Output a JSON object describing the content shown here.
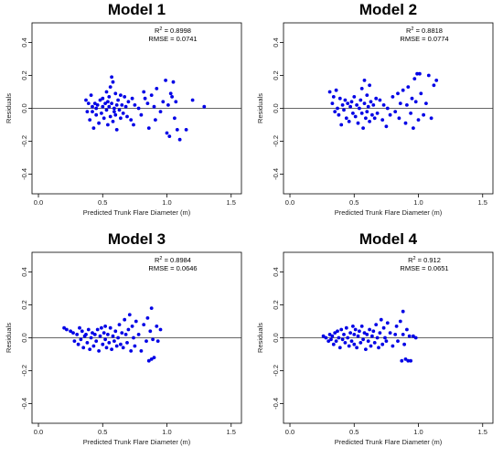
{
  "chart_data": [
    {
      "type": "scatter",
      "title": "Model 1",
      "r2_prefix": "R",
      "r2_sup": "2",
      "r2_value": " = 0.8998",
      "rmse_text": "RMSE = 0.0741",
      "xlabel": "Predicted Trunk Flare Diameter (m)",
      "ylabel": "Residuals",
      "xlim": [
        -0.05,
        1.58
      ],
      "ylim": [
        -0.52,
        0.52
      ],
      "xticks": [
        "0.0",
        "0.5",
        "1.0",
        "1.5"
      ],
      "yticks": [
        "-0.4",
        "-0.2",
        "0.0",
        "0.2",
        "0.4"
      ],
      "reference_line_y": 0.0,
      "color": "#0000e6",
      "points": [
        [
          0.37,
          0.05
        ],
        [
          0.38,
          -0.02
        ],
        [
          0.39,
          0.03
        ],
        [
          0.4,
          -0.07
        ],
        [
          0.41,
          0.08
        ],
        [
          0.42,
          -0.02
        ],
        [
          0.42,
          0.01
        ],
        [
          0.43,
          -0.12
        ],
        [
          0.44,
          0.03
        ],
        [
          0.45,
          0.0
        ],
        [
          0.45,
          -0.04
        ],
        [
          0.46,
          0.02
        ],
        [
          0.47,
          -0.09
        ],
        [
          0.48,
          0.05
        ],
        [
          0.49,
          -0.03
        ],
        [
          0.5,
          0.01
        ],
        [
          0.5,
          0.06
        ],
        [
          0.51,
          -0.06
        ],
        [
          0.52,
          0.03
        ],
        [
          0.53,
          -0.01
        ],
        [
          0.53,
          0.1
        ],
        [
          0.54,
          0.04
        ],
        [
          0.54,
          -0.1
        ],
        [
          0.55,
          0.07
        ],
        [
          0.55,
          0.01
        ],
        [
          0.56,
          -0.05
        ],
        [
          0.56,
          0.13
        ],
        [
          0.57,
          0.19
        ],
        [
          0.57,
          0.03
        ],
        [
          0.58,
          -0.08
        ],
        [
          0.58,
          0.16
        ],
        [
          0.59,
          0.0
        ],
        [
          0.59,
          -0.02
        ],
        [
          0.6,
          0.09
        ],
        [
          0.6,
          -0.04
        ],
        [
          0.61,
          0.02
        ],
        [
          0.61,
          -0.13
        ],
        [
          0.62,
          0.05
        ],
        [
          0.63,
          -0.01
        ],
        [
          0.64,
          0.08
        ],
        [
          0.64,
          -0.06
        ],
        [
          0.65,
          0.02
        ],
        [
          0.66,
          -0.03
        ],
        [
          0.67,
          0.07
        ],
        [
          0.68,
          0.01
        ],
        [
          0.69,
          -0.05
        ],
        [
          0.7,
          0.04
        ],
        [
          0.72,
          -0.07
        ],
        [
          0.73,
          0.06
        ],
        [
          0.74,
          -0.1
        ],
        [
          0.75,
          0.02
        ],
        [
          0.78,
          0.0
        ],
        [
          0.8,
          -0.04
        ],
        [
          0.82,
          0.1
        ],
        [
          0.83,
          0.06
        ],
        [
          0.85,
          0.03
        ],
        [
          0.86,
          -0.12
        ],
        [
          0.88,
          0.08
        ],
        [
          0.9,
          0.01
        ],
        [
          0.91,
          -0.07
        ],
        [
          0.92,
          0.12
        ],
        [
          0.95,
          -0.02
        ],
        [
          0.97,
          0.04
        ],
        [
          0.99,
          0.17
        ],
        [
          1.0,
          -0.15
        ],
        [
          1.01,
          0.02
        ],
        [
          1.02,
          -0.17
        ],
        [
          1.03,
          0.09
        ],
        [
          1.04,
          0.07
        ],
        [
          1.05,
          0.16
        ],
        [
          1.06,
          -0.06
        ],
        [
          1.07,
          0.04
        ],
        [
          1.08,
          -0.13
        ],
        [
          1.1,
          -0.19
        ],
        [
          1.15,
          -0.13
        ],
        [
          1.2,
          0.05
        ],
        [
          1.29,
          0.01
        ]
      ]
    },
    {
      "type": "scatter",
      "title": "Model 2",
      "r2_prefix": "R",
      "r2_sup": "2",
      "r2_value": " = 0.8818",
      "rmse_text": "RMSE = 0.0774",
      "xlabel": "Predicted Trunk Flare Diameter (m)",
      "ylabel": "Residuals",
      "xlim": [
        -0.05,
        1.58
      ],
      "ylim": [
        -0.52,
        0.52
      ],
      "xticks": [
        "0.0",
        "0.5",
        "1.0",
        "1.5"
      ],
      "yticks": [
        "-0.4",
        "-0.2",
        "0.0",
        "0.2",
        "0.4"
      ],
      "reference_line_y": 0.0,
      "color": "#0000e6",
      "points": [
        [
          0.31,
          0.1
        ],
        [
          0.33,
          0.03
        ],
        [
          0.34,
          0.07
        ],
        [
          0.35,
          -0.02
        ],
        [
          0.36,
          0.11
        ],
        [
          0.37,
          0.0
        ],
        [
          0.38,
          -0.04
        ],
        [
          0.39,
          0.06
        ],
        [
          0.4,
          -0.1
        ],
        [
          0.41,
          0.02
        ],
        [
          0.42,
          -0.01
        ],
        [
          0.43,
          0.05
        ],
        [
          0.44,
          -0.06
        ],
        [
          0.45,
          0.03
        ],
        [
          0.46,
          -0.08
        ],
        [
          0.47,
          0.01
        ],
        [
          0.48,
          0.04
        ],
        [
          0.49,
          -0.03
        ],
        [
          0.5,
          0.07
        ],
        [
          0.51,
          -0.05
        ],
        [
          0.52,
          0.02
        ],
        [
          0.53,
          -0.09
        ],
        [
          0.54,
          0.0
        ],
        [
          0.55,
          0.05
        ],
        [
          0.56,
          -0.03
        ],
        [
          0.56,
          0.12
        ],
        [
          0.57,
          -0.12
        ],
        [
          0.58,
          0.17
        ],
        [
          0.58,
          0.03
        ],
        [
          0.59,
          -0.06
        ],
        [
          0.6,
          0.08
        ],
        [
          0.6,
          -0.02
        ],
        [
          0.61,
          0.01
        ],
        [
          0.62,
          -0.08
        ],
        [
          0.62,
          0.14
        ],
        [
          0.63,
          0.04
        ],
        [
          0.64,
          -0.04
        ],
        [
          0.65,
          0.02
        ],
        [
          0.66,
          -0.06
        ],
        [
          0.67,
          0.06
        ],
        [
          0.68,
          -0.03
        ],
        [
          0.7,
          0.05
        ],
        [
          0.72,
          -0.07
        ],
        [
          0.73,
          0.02
        ],
        [
          0.75,
          -0.11
        ],
        [
          0.76,
          0.0
        ],
        [
          0.78,
          -0.04
        ],
        [
          0.8,
          0.07
        ],
        [
          0.82,
          -0.02
        ],
        [
          0.84,
          0.09
        ],
        [
          0.85,
          -0.06
        ],
        [
          0.86,
          0.03
        ],
        [
          0.88,
          0.11
        ],
        [
          0.9,
          -0.09
        ],
        [
          0.91,
          0.02
        ],
        [
          0.92,
          0.13
        ],
        [
          0.94,
          -0.03
        ],
        [
          0.95,
          0.06
        ],
        [
          0.96,
          -0.12
        ],
        [
          0.97,
          0.18
        ],
        [
          0.98,
          0.04
        ],
        [
          0.99,
          0.21
        ],
        [
          1.0,
          -0.07
        ],
        [
          1.01,
          0.21
        ],
        [
          1.02,
          0.09
        ],
        [
          1.04,
          -0.04
        ],
        [
          1.06,
          0.03
        ],
        [
          1.08,
          0.2
        ],
        [
          1.1,
          -0.06
        ],
        [
          1.12,
          0.14
        ],
        [
          1.14,
          0.17
        ]
      ]
    },
    {
      "type": "scatter",
      "title": "Model 3",
      "r2_prefix": "R",
      "r2_sup": "2",
      "r2_value": " = 0.8984",
      "rmse_text": "RMSE = 0.0646",
      "xlabel": "Predicted Trunk Flare Diameter (m)",
      "ylabel": "Residuals",
      "xlim": [
        -0.05,
        1.58
      ],
      "ylim": [
        -0.52,
        0.52
      ],
      "xticks": [
        "0.0",
        "0.5",
        "1.0",
        "1.5"
      ],
      "yticks": [
        "-0.4",
        "-0.2",
        "0.0",
        "0.2",
        "0.4"
      ],
      "reference_line_y": 0.0,
      "color": "#0000e6",
      "points": [
        [
          0.2,
          0.06
        ],
        [
          0.22,
          0.05
        ],
        [
          0.25,
          0.04
        ],
        [
          0.27,
          0.03
        ],
        [
          0.28,
          -0.02
        ],
        [
          0.3,
          0.02
        ],
        [
          0.31,
          -0.04
        ],
        [
          0.32,
          0.06
        ],
        [
          0.33,
          -0.01
        ],
        [
          0.34,
          0.04
        ],
        [
          0.35,
          -0.06
        ],
        [
          0.36,
          0.01
        ],
        [
          0.37,
          0.02
        ],
        [
          0.38,
          -0.03
        ],
        [
          0.39,
          0.05
        ],
        [
          0.4,
          -0.07
        ],
        [
          0.41,
          0.0
        ],
        [
          0.42,
          0.03
        ],
        [
          0.43,
          -0.05
        ],
        [
          0.44,
          0.02
        ],
        [
          0.45,
          -0.02
        ],
        [
          0.46,
          0.05
        ],
        [
          0.47,
          -0.08
        ],
        [
          0.48,
          0.01
        ],
        [
          0.49,
          0.06
        ],
        [
          0.5,
          -0.04
        ],
        [
          0.51,
          0.03
        ],
        [
          0.52,
          -0.01
        ],
        [
          0.52,
          0.07
        ],
        [
          0.53,
          -0.06
        ],
        [
          0.54,
          0.02
        ],
        [
          0.55,
          -0.03
        ],
        [
          0.56,
          0.06
        ],
        [
          0.57,
          -0.07
        ],
        [
          0.58,
          0.01
        ],
        [
          0.59,
          -0.02
        ],
        [
          0.6,
          0.04
        ],
        [
          0.61,
          -0.05
        ],
        [
          0.62,
          0.0
        ],
        [
          0.63,
          0.08
        ],
        [
          0.64,
          -0.04
        ],
        [
          0.65,
          0.03
        ],
        [
          0.66,
          -0.06
        ],
        [
          0.67,
          0.11
        ],
        [
          0.68,
          0.02
        ],
        [
          0.69,
          -0.03
        ],
        [
          0.7,
          0.05
        ],
        [
          0.71,
          0.14
        ],
        [
          0.72,
          -0.08
        ],
        [
          0.73,
          0.07
        ],
        [
          0.74,
          0.0
        ],
        [
          0.75,
          -0.05
        ],
        [
          0.76,
          0.1
        ],
        [
          0.78,
          0.02
        ],
        [
          0.8,
          -0.08
        ],
        [
          0.82,
          0.08
        ],
        [
          0.84,
          -0.02
        ],
        [
          0.85,
          0.12
        ],
        [
          0.86,
          -0.14
        ],
        [
          0.87,
          0.04
        ],
        [
          0.88,
          0.18
        ],
        [
          0.88,
          -0.13
        ],
        [
          0.89,
          -0.01
        ],
        [
          0.9,
          -0.12
        ],
        [
          0.92,
          0.07
        ],
        [
          0.93,
          -0.02
        ],
        [
          0.95,
          0.05
        ]
      ]
    },
    {
      "type": "scatter",
      "title": "Model 4",
      "r2_prefix": "R",
      "r2_sup": "2",
      "r2_value": " = 0.912",
      "rmse_text": "RMSE = 0.0651",
      "xlabel": "Predicted Trunk Flare Diameter (m)",
      "ylabel": "Residuals",
      "xlim": [
        -0.05,
        1.58
      ],
      "ylim": [
        -0.52,
        0.52
      ],
      "xticks": [
        "0.0",
        "0.5",
        "1.0",
        "1.5"
      ],
      "yticks": [
        "-0.4",
        "-0.2",
        "0.0",
        "0.2",
        "0.4"
      ],
      "reference_line_y": 0.0,
      "color": "#0000e6",
      "points": [
        [
          0.26,
          0.01
        ],
        [
          0.28,
          0.0
        ],
        [
          0.3,
          -0.02
        ],
        [
          0.31,
          0.02
        ],
        [
          0.32,
          -0.01
        ],
        [
          0.33,
          0.01
        ],
        [
          0.34,
          -0.04
        ],
        [
          0.35,
          0.03
        ],
        [
          0.36,
          -0.02
        ],
        [
          0.37,
          0.04
        ],
        [
          0.38,
          0.0
        ],
        [
          0.39,
          -0.06
        ],
        [
          0.4,
          0.05
        ],
        [
          0.41,
          -0.01
        ],
        [
          0.42,
          0.02
        ],
        [
          0.43,
          -0.03
        ],
        [
          0.44,
          0.06
        ],
        [
          0.45,
          0.0
        ],
        [
          0.46,
          -0.05
        ],
        [
          0.47,
          0.03
        ],
        [
          0.48,
          -0.02
        ],
        [
          0.49,
          0.07
        ],
        [
          0.5,
          -0.04
        ],
        [
          0.5,
          0.02
        ],
        [
          0.51,
          0.05
        ],
        [
          0.52,
          -0.06
        ],
        [
          0.53,
          0.01
        ],
        [
          0.54,
          0.04
        ],
        [
          0.55,
          -0.03
        ],
        [
          0.56,
          0.07
        ],
        [
          0.57,
          -0.01
        ],
        [
          0.58,
          0.03
        ],
        [
          0.59,
          -0.07
        ],
        [
          0.6,
          0.02
        ],
        [
          0.61,
          -0.02
        ],
        [
          0.62,
          0.05
        ],
        [
          0.63,
          -0.05
        ],
        [
          0.64,
          0.01
        ],
        [
          0.65,
          0.04
        ],
        [
          0.66,
          -0.03
        ],
        [
          0.67,
          0.08
        ],
        [
          0.68,
          0.0
        ],
        [
          0.69,
          -0.06
        ],
        [
          0.7,
          0.03
        ],
        [
          0.71,
          0.11
        ],
        [
          0.72,
          -0.04
        ],
        [
          0.73,
          0.06
        ],
        [
          0.74,
          0.0
        ],
        [
          0.75,
          -0.02
        ],
        [
          0.76,
          0.09
        ],
        [
          0.78,
          0.03
        ],
        [
          0.8,
          -0.05
        ],
        [
          0.82,
          0.02
        ],
        [
          0.83,
          0.07
        ],
        [
          0.84,
          -0.02
        ],
        [
          0.86,
          0.1
        ],
        [
          0.87,
          -0.14
        ],
        [
          0.88,
          0.16
        ],
        [
          0.88,
          0.02
        ],
        [
          0.89,
          -0.04
        ],
        [
          0.9,
          -0.13
        ],
        [
          0.91,
          0.05
        ],
        [
          0.92,
          -0.14
        ],
        [
          0.93,
          0.01
        ],
        [
          0.94,
          -0.14
        ],
        [
          0.96,
          0.01
        ],
        [
          0.98,
          0.0
        ]
      ]
    }
  ]
}
